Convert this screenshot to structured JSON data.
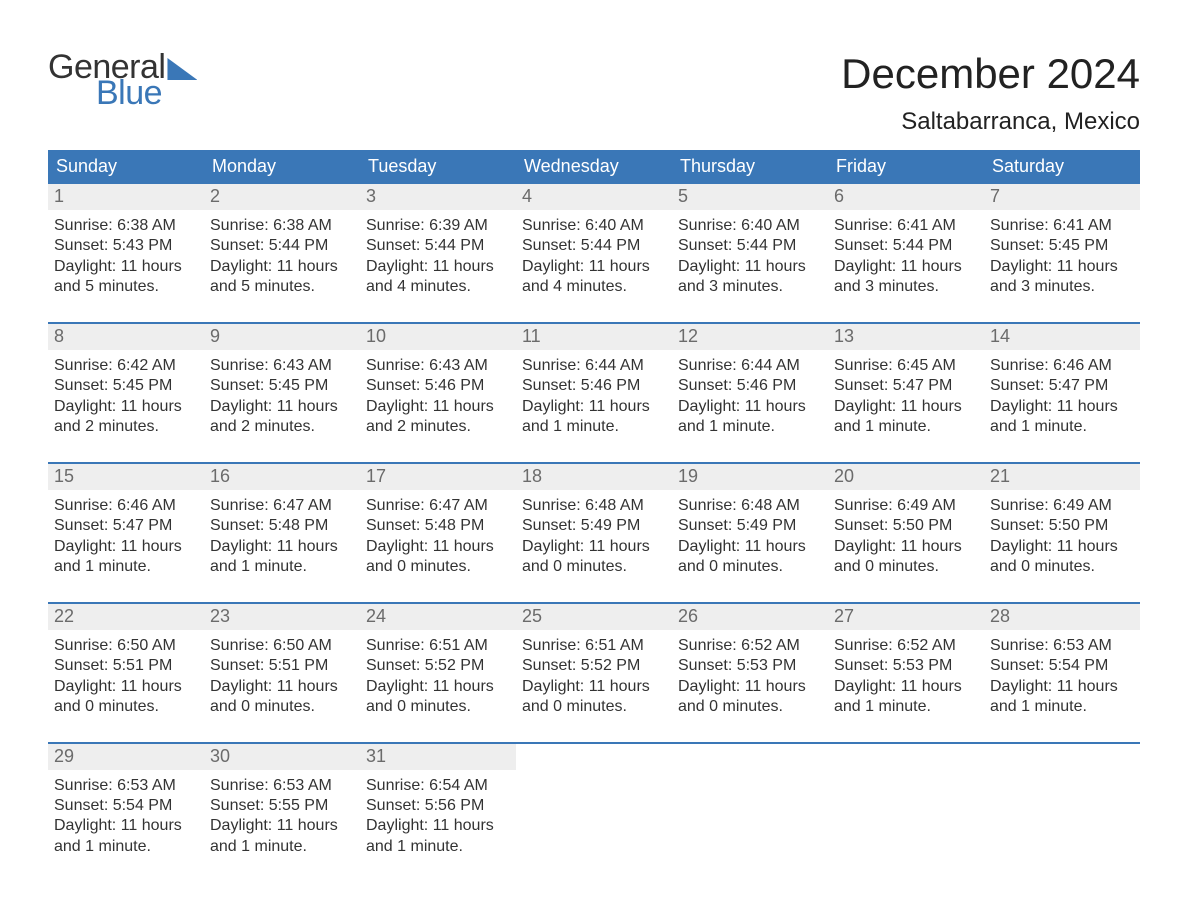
{
  "brand": {
    "word1": "General",
    "word2": "Blue",
    "accent_hex": "#3a77b7"
  },
  "title": "December 2024",
  "location": "Saltabarranca, Mexico",
  "colors": {
    "header_bg": "#3a77b7",
    "header_text": "#ffffff",
    "daynum_bg": "#eeeeee",
    "daynum_text": "#6b6b6b",
    "body_text": "#333333",
    "page_bg": "#ffffff",
    "week_divider": "#3a77b7"
  },
  "typography": {
    "title_fontsize": 42,
    "location_fontsize": 24,
    "dayheader_fontsize": 18,
    "daynum_fontsize": 18,
    "body_fontsize": 16
  },
  "day_names": [
    "Sunday",
    "Monday",
    "Tuesday",
    "Wednesday",
    "Thursday",
    "Friday",
    "Saturday"
  ],
  "weeks": [
    [
      {
        "n": "1",
        "sunrise": "Sunrise: 6:38 AM",
        "sunset": "Sunset: 5:43 PM",
        "dl1": "Daylight: 11 hours",
        "dl2": "and 5 minutes."
      },
      {
        "n": "2",
        "sunrise": "Sunrise: 6:38 AM",
        "sunset": "Sunset: 5:44 PM",
        "dl1": "Daylight: 11 hours",
        "dl2": "and 5 minutes."
      },
      {
        "n": "3",
        "sunrise": "Sunrise: 6:39 AM",
        "sunset": "Sunset: 5:44 PM",
        "dl1": "Daylight: 11 hours",
        "dl2": "and 4 minutes."
      },
      {
        "n": "4",
        "sunrise": "Sunrise: 6:40 AM",
        "sunset": "Sunset: 5:44 PM",
        "dl1": "Daylight: 11 hours",
        "dl2": "and 4 minutes."
      },
      {
        "n": "5",
        "sunrise": "Sunrise: 6:40 AM",
        "sunset": "Sunset: 5:44 PM",
        "dl1": "Daylight: 11 hours",
        "dl2": "and 3 minutes."
      },
      {
        "n": "6",
        "sunrise": "Sunrise: 6:41 AM",
        "sunset": "Sunset: 5:44 PM",
        "dl1": "Daylight: 11 hours",
        "dl2": "and 3 minutes."
      },
      {
        "n": "7",
        "sunrise": "Sunrise: 6:41 AM",
        "sunset": "Sunset: 5:45 PM",
        "dl1": "Daylight: 11 hours",
        "dl2": "and 3 minutes."
      }
    ],
    [
      {
        "n": "8",
        "sunrise": "Sunrise: 6:42 AM",
        "sunset": "Sunset: 5:45 PM",
        "dl1": "Daylight: 11 hours",
        "dl2": "and 2 minutes."
      },
      {
        "n": "9",
        "sunrise": "Sunrise: 6:43 AM",
        "sunset": "Sunset: 5:45 PM",
        "dl1": "Daylight: 11 hours",
        "dl2": "and 2 minutes."
      },
      {
        "n": "10",
        "sunrise": "Sunrise: 6:43 AM",
        "sunset": "Sunset: 5:46 PM",
        "dl1": "Daylight: 11 hours",
        "dl2": "and 2 minutes."
      },
      {
        "n": "11",
        "sunrise": "Sunrise: 6:44 AM",
        "sunset": "Sunset: 5:46 PM",
        "dl1": "Daylight: 11 hours",
        "dl2": "and 1 minute."
      },
      {
        "n": "12",
        "sunrise": "Sunrise: 6:44 AM",
        "sunset": "Sunset: 5:46 PM",
        "dl1": "Daylight: 11 hours",
        "dl2": "and 1 minute."
      },
      {
        "n": "13",
        "sunrise": "Sunrise: 6:45 AM",
        "sunset": "Sunset: 5:47 PM",
        "dl1": "Daylight: 11 hours",
        "dl2": "and 1 minute."
      },
      {
        "n": "14",
        "sunrise": "Sunrise: 6:46 AM",
        "sunset": "Sunset: 5:47 PM",
        "dl1": "Daylight: 11 hours",
        "dl2": "and 1 minute."
      }
    ],
    [
      {
        "n": "15",
        "sunrise": "Sunrise: 6:46 AM",
        "sunset": "Sunset: 5:47 PM",
        "dl1": "Daylight: 11 hours",
        "dl2": "and 1 minute."
      },
      {
        "n": "16",
        "sunrise": "Sunrise: 6:47 AM",
        "sunset": "Sunset: 5:48 PM",
        "dl1": "Daylight: 11 hours",
        "dl2": "and 1 minute."
      },
      {
        "n": "17",
        "sunrise": "Sunrise: 6:47 AM",
        "sunset": "Sunset: 5:48 PM",
        "dl1": "Daylight: 11 hours",
        "dl2": "and 0 minutes."
      },
      {
        "n": "18",
        "sunrise": "Sunrise: 6:48 AM",
        "sunset": "Sunset: 5:49 PM",
        "dl1": "Daylight: 11 hours",
        "dl2": "and 0 minutes."
      },
      {
        "n": "19",
        "sunrise": "Sunrise: 6:48 AM",
        "sunset": "Sunset: 5:49 PM",
        "dl1": "Daylight: 11 hours",
        "dl2": "and 0 minutes."
      },
      {
        "n": "20",
        "sunrise": "Sunrise: 6:49 AM",
        "sunset": "Sunset: 5:50 PM",
        "dl1": "Daylight: 11 hours",
        "dl2": "and 0 minutes."
      },
      {
        "n": "21",
        "sunrise": "Sunrise: 6:49 AM",
        "sunset": "Sunset: 5:50 PM",
        "dl1": "Daylight: 11 hours",
        "dl2": "and 0 minutes."
      }
    ],
    [
      {
        "n": "22",
        "sunrise": "Sunrise: 6:50 AM",
        "sunset": "Sunset: 5:51 PM",
        "dl1": "Daylight: 11 hours",
        "dl2": "and 0 minutes."
      },
      {
        "n": "23",
        "sunrise": "Sunrise: 6:50 AM",
        "sunset": "Sunset: 5:51 PM",
        "dl1": "Daylight: 11 hours",
        "dl2": "and 0 minutes."
      },
      {
        "n": "24",
        "sunrise": "Sunrise: 6:51 AM",
        "sunset": "Sunset: 5:52 PM",
        "dl1": "Daylight: 11 hours",
        "dl2": "and 0 minutes."
      },
      {
        "n": "25",
        "sunrise": "Sunrise: 6:51 AM",
        "sunset": "Sunset: 5:52 PM",
        "dl1": "Daylight: 11 hours",
        "dl2": "and 0 minutes."
      },
      {
        "n": "26",
        "sunrise": "Sunrise: 6:52 AM",
        "sunset": "Sunset: 5:53 PM",
        "dl1": "Daylight: 11 hours",
        "dl2": "and 0 minutes."
      },
      {
        "n": "27",
        "sunrise": "Sunrise: 6:52 AM",
        "sunset": "Sunset: 5:53 PM",
        "dl1": "Daylight: 11 hours",
        "dl2": "and 1 minute."
      },
      {
        "n": "28",
        "sunrise": "Sunrise: 6:53 AM",
        "sunset": "Sunset: 5:54 PM",
        "dl1": "Daylight: 11 hours",
        "dl2": "and 1 minute."
      }
    ],
    [
      {
        "n": "29",
        "sunrise": "Sunrise: 6:53 AM",
        "sunset": "Sunset: 5:54 PM",
        "dl1": "Daylight: 11 hours",
        "dl2": "and 1 minute."
      },
      {
        "n": "30",
        "sunrise": "Sunrise: 6:53 AM",
        "sunset": "Sunset: 5:55 PM",
        "dl1": "Daylight: 11 hours",
        "dl2": "and 1 minute."
      },
      {
        "n": "31",
        "sunrise": "Sunrise: 6:54 AM",
        "sunset": "Sunset: 5:56 PM",
        "dl1": "Daylight: 11 hours",
        "dl2": "and 1 minute."
      },
      {
        "n": "",
        "sunrise": "",
        "sunset": "",
        "dl1": "",
        "dl2": ""
      },
      {
        "n": "",
        "sunrise": "",
        "sunset": "",
        "dl1": "",
        "dl2": ""
      },
      {
        "n": "",
        "sunrise": "",
        "sunset": "",
        "dl1": "",
        "dl2": ""
      },
      {
        "n": "",
        "sunrise": "",
        "sunset": "",
        "dl1": "",
        "dl2": ""
      }
    ]
  ]
}
